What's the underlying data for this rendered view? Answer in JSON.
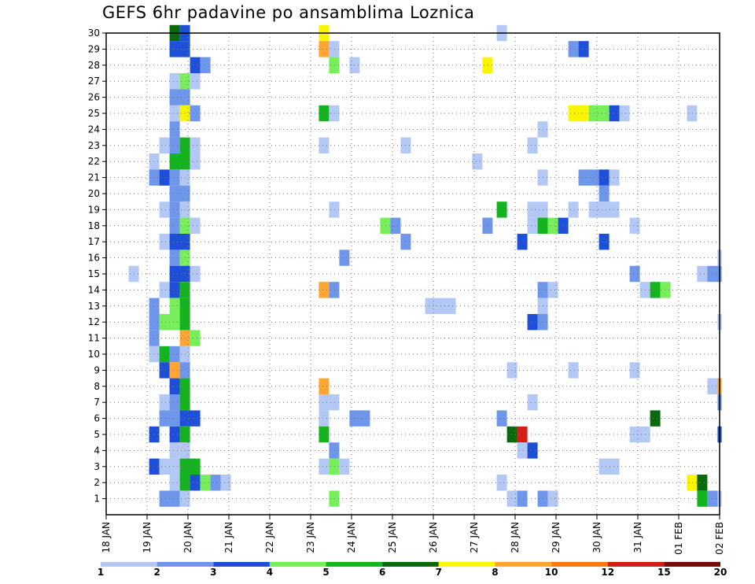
{
  "chart_data": {
    "type": "heatmap",
    "title": "GEFS 6hr padavine po ansamblima Loznica",
    "x_tick_labels": [
      "18 JAN",
      "19 JAN",
      "20 JAN",
      "21 JAN",
      "22 JAN",
      "23 JAN",
      "24 JAN",
      "25 JAN",
      "26 JAN",
      "27 JAN",
      "28 JAN",
      "29 JAN",
      "30 JAN",
      "31 JAN",
      "01 FEB",
      "02 FEB"
    ],
    "y_tick_labels": [
      "1",
      "2",
      "3",
      "4",
      "5",
      "6",
      "7",
      "8",
      "9",
      "10",
      "11",
      "12",
      "13",
      "14",
      "15",
      "16",
      "17",
      "18",
      "19",
      "20",
      "21",
      "22",
      "23",
      "24",
      "25",
      "26",
      "27",
      "28",
      "29",
      "30"
    ],
    "x_range": [
      "18 JAN 00Z",
      "02 FEB 00Z"
    ],
    "y_range": [
      0,
      30
    ],
    "grid": true,
    "legend_position": "bottom",
    "color_scale": {
      "colors": [
        "#b4c8f5",
        "#6e96eb",
        "#1e50d7",
        "#78ef5a",
        "#14b41e",
        "#0a690a",
        "#fbf500",
        "#ffa532",
        "#ff7814",
        "#d21e14",
        "#780a0a"
      ],
      "labels": [
        "1",
        "2",
        "3",
        "4",
        "5",
        "6",
        "7",
        "8",
        "10",
        "12",
        "15",
        "20"
      ]
    },
    "cell_note": "cells: [member, day offset from 18 JAN, day offset end, color level index]",
    "cells": [
      [
        30,
        1.55,
        1.8,
        5
      ],
      [
        30,
        1.8,
        2.05,
        2
      ],
      [
        30,
        5.2,
        5.45,
        6
      ],
      [
        30,
        9.55,
        9.8,
        0
      ],
      [
        29,
        1.55,
        2.05,
        2
      ],
      [
        29,
        5.2,
        5.45,
        7
      ],
      [
        29,
        5.45,
        5.7,
        0
      ],
      [
        29,
        11.3,
        11.55,
        1
      ],
      [
        29,
        11.55,
        11.8,
        2
      ],
      [
        28,
        2.05,
        2.3,
        2
      ],
      [
        28,
        2.3,
        2.55,
        1
      ],
      [
        28,
        5.45,
        5.7,
        3
      ],
      [
        28,
        5.95,
        6.2,
        0
      ],
      [
        28,
        9.2,
        9.45,
        6
      ],
      [
        27,
        1.55,
        1.8,
        0
      ],
      [
        27,
        1.8,
        2.05,
        3
      ],
      [
        27,
        2.05,
        2.3,
        0
      ],
      [
        26,
        1.55,
        2.05,
        1
      ],
      [
        25,
        1.55,
        1.8,
        0
      ],
      [
        25,
        1.8,
        2.05,
        6
      ],
      [
        25,
        2.05,
        2.3,
        1
      ],
      [
        25,
        5.2,
        5.45,
        4
      ],
      [
        25,
        5.45,
        5.7,
        0
      ],
      [
        25,
        11.3,
        11.8,
        6
      ],
      [
        25,
        11.8,
        12.3,
        3
      ],
      [
        25,
        12.3,
        12.55,
        2
      ],
      [
        25,
        12.55,
        12.8,
        0
      ],
      [
        25,
        14.2,
        14.45,
        0
      ],
      [
        24,
        1.55,
        1.8,
        1
      ],
      [
        24,
        10.55,
        10.8,
        0
      ],
      [
        23,
        1.3,
        1.55,
        0
      ],
      [
        23,
        1.55,
        1.8,
        1
      ],
      [
        23,
        1.8,
        2.05,
        4
      ],
      [
        23,
        2.05,
        2.3,
        0
      ],
      [
        23,
        5.2,
        5.45,
        0
      ],
      [
        23,
        7.2,
        7.45,
        0
      ],
      [
        23,
        10.3,
        10.55,
        0
      ],
      [
        22,
        1.05,
        1.3,
        0
      ],
      [
        22,
        1.55,
        2.05,
        4
      ],
      [
        22,
        2.05,
        2.3,
        0
      ],
      [
        22,
        8.95,
        9.2,
        0
      ],
      [
        21,
        1.05,
        1.3,
        1
      ],
      [
        21,
        1.3,
        1.55,
        2
      ],
      [
        21,
        1.55,
        1.8,
        1
      ],
      [
        21,
        1.8,
        2.05,
        0
      ],
      [
        21,
        10.55,
        10.8,
        0
      ],
      [
        21,
        11.55,
        12.05,
        1
      ],
      [
        21,
        12.05,
        12.3,
        2
      ],
      [
        21,
        12.3,
        12.55,
        0
      ],
      [
        20,
        1.55,
        2.05,
        1
      ],
      [
        20,
        12.05,
        12.3,
        1
      ],
      [
        19,
        1.3,
        1.55,
        0
      ],
      [
        19,
        1.55,
        1.8,
        1
      ],
      [
        19,
        1.8,
        2.05,
        0
      ],
      [
        19,
        5.45,
        5.7,
        0
      ],
      [
        19,
        9.55,
        9.8,
        4
      ],
      [
        19,
        10.3,
        10.8,
        0
      ],
      [
        19,
        11.3,
        11.55,
        0
      ],
      [
        19,
        11.8,
        12.55,
        0
      ],
      [
        18,
        1.55,
        1.8,
        1
      ],
      [
        18,
        1.8,
        2.05,
        3
      ],
      [
        18,
        2.05,
        2.3,
        0
      ],
      [
        18,
        6.7,
        6.95,
        3
      ],
      [
        18,
        6.95,
        7.2,
        1
      ],
      [
        18,
        9.2,
        9.45,
        1
      ],
      [
        18,
        10.3,
        10.55,
        0
      ],
      [
        18,
        10.55,
        10.8,
        4
      ],
      [
        18,
        10.8,
        11.05,
        3
      ],
      [
        18,
        11.05,
        11.3,
        2
      ],
      [
        18,
        12.8,
        13.05,
        0
      ],
      [
        17,
        1.3,
        1.55,
        0
      ],
      [
        17,
        1.55,
        2.05,
        2
      ],
      [
        17,
        7.2,
        7.45,
        1
      ],
      [
        17,
        10.05,
        10.3,
        2
      ],
      [
        17,
        12.05,
        12.3,
        2
      ],
      [
        16,
        1.55,
        1.8,
        1
      ],
      [
        16,
        1.8,
        2.05,
        3
      ],
      [
        16,
        5.7,
        5.95,
        1
      ],
      [
        16,
        14.95,
        15.05,
        0
      ],
      [
        15,
        0.55,
        0.8,
        0
      ],
      [
        15,
        1.55,
        2.05,
        2
      ],
      [
        15,
        2.05,
        2.3,
        0
      ],
      [
        15,
        12.8,
        13.05,
        1
      ],
      [
        15,
        14.45,
        14.7,
        0
      ],
      [
        15,
        14.7,
        15.05,
        1
      ],
      [
        14,
        1.3,
        1.55,
        0
      ],
      [
        14,
        1.55,
        1.8,
        2
      ],
      [
        14,
        1.8,
        2.05,
        4
      ],
      [
        14,
        5.2,
        5.45,
        7
      ],
      [
        14,
        5.45,
        5.7,
        1
      ],
      [
        14,
        10.55,
        10.8,
        1
      ],
      [
        14,
        10.8,
        11.05,
        0
      ],
      [
        14,
        13.05,
        13.3,
        0
      ],
      [
        14,
        13.3,
        13.55,
        4
      ],
      [
        14,
        13.55,
        13.8,
        3
      ],
      [
        13,
        1.05,
        1.3,
        1
      ],
      [
        13,
        1.55,
        1.8,
        3
      ],
      [
        13,
        1.8,
        2.05,
        4
      ],
      [
        13,
        10.55,
        10.8,
        0
      ],
      [
        13,
        7.8,
        8.55,
        0
      ],
      [
        12,
        1.05,
        1.3,
        1
      ],
      [
        12,
        1.3,
        1.8,
        3
      ],
      [
        12,
        1.8,
        2.05,
        4
      ],
      [
        12,
        10.3,
        10.55,
        2
      ],
      [
        12,
        10.55,
        10.8,
        1
      ],
      [
        12,
        14.95,
        15.05,
        0
      ],
      [
        11,
        1.05,
        1.3,
        1
      ],
      [
        11,
        1.8,
        2.05,
        7
      ],
      [
        11,
        2.05,
        2.3,
        3
      ],
      [
        10,
        1.05,
        1.3,
        0
      ],
      [
        10,
        1.3,
        1.55,
        4
      ],
      [
        10,
        1.55,
        1.8,
        1
      ],
      [
        10,
        1.8,
        2.05,
        0
      ],
      [
        9,
        1.3,
        1.55,
        2
      ],
      [
        9,
        1.55,
        1.8,
        7
      ],
      [
        9,
        1.8,
        2.05,
        1
      ],
      [
        9,
        9.8,
        10.05,
        0
      ],
      [
        9,
        11.3,
        11.55,
        0
      ],
      [
        9,
        12.8,
        13.05,
        0
      ],
      [
        8,
        1.55,
        1.8,
        2
      ],
      [
        8,
        1.8,
        2.05,
        4
      ],
      [
        8,
        5.2,
        5.45,
        7
      ],
      [
        8,
        14.7,
        14.95,
        0
      ],
      [
        8,
        14.95,
        15.05,
        7
      ],
      [
        7,
        1.3,
        1.55,
        0
      ],
      [
        7,
        1.55,
        1.8,
        1
      ],
      [
        7,
        1.8,
        2.05,
        4
      ],
      [
        7,
        5.2,
        5.7,
        0
      ],
      [
        7,
        10.3,
        10.55,
        0
      ],
      [
        7,
        14.95,
        15.05,
        1
      ],
      [
        6,
        1.3,
        1.8,
        1
      ],
      [
        6,
        1.8,
        2.3,
        2
      ],
      [
        6,
        5.2,
        5.45,
        0
      ],
      [
        6,
        5.95,
        6.45,
        1
      ],
      [
        6,
        9.55,
        9.8,
        1
      ],
      [
        6,
        13.3,
        13.55,
        5
      ],
      [
        5,
        1.05,
        1.3,
        2
      ],
      [
        5,
        1.55,
        1.8,
        2
      ],
      [
        5,
        1.8,
        2.05,
        4
      ],
      [
        5,
        5.2,
        5.45,
        4
      ],
      [
        5,
        9.8,
        10.05,
        5
      ],
      [
        5,
        10.05,
        10.3,
        9
      ],
      [
        5,
        12.8,
        13.3,
        0
      ],
      [
        5,
        14.95,
        15.05,
        2
      ],
      [
        4,
        1.55,
        1.8,
        0
      ],
      [
        4,
        1.8,
        2.05,
        0
      ],
      [
        4,
        5.45,
        5.7,
        1
      ],
      [
        4,
        10.05,
        10.3,
        0
      ],
      [
        4,
        10.3,
        10.55,
        2
      ],
      [
        3,
        1.05,
        1.3,
        2
      ],
      [
        3,
        1.3,
        1.8,
        0
      ],
      [
        3,
        1.8,
        2.3,
        4
      ],
      [
        3,
        5.2,
        5.45,
        0
      ],
      [
        3,
        5.45,
        5.7,
        3
      ],
      [
        3,
        5.7,
        5.95,
        0
      ],
      [
        3,
        12.05,
        12.55,
        0
      ],
      [
        2,
        1.55,
        1.8,
        0
      ],
      [
        2,
        1.8,
        2.05,
        4
      ],
      [
        2,
        2.05,
        2.3,
        2
      ],
      [
        2,
        2.3,
        2.55,
        3
      ],
      [
        2,
        2.55,
        2.8,
        1
      ],
      [
        2,
        2.8,
        3.05,
        0
      ],
      [
        2,
        9.55,
        9.8,
        0
      ],
      [
        2,
        14.2,
        14.45,
        6
      ],
      [
        2,
        14.45,
        14.7,
        5
      ],
      [
        1,
        1.3,
        1.8,
        1
      ],
      [
        1,
        1.8,
        2.05,
        0
      ],
      [
        1,
        5.45,
        5.7,
        3
      ],
      [
        1,
        9.8,
        10.05,
        0
      ],
      [
        1,
        10.05,
        10.3,
        1
      ],
      [
        1,
        10.55,
        10.8,
        1
      ],
      [
        1,
        10.8,
        11.05,
        0
      ],
      [
        1,
        14.45,
        14.7,
        4
      ],
      [
        1,
        14.7,
        14.95,
        1
      ],
      [
        1,
        14.95,
        15.05,
        0
      ]
    ]
  }
}
